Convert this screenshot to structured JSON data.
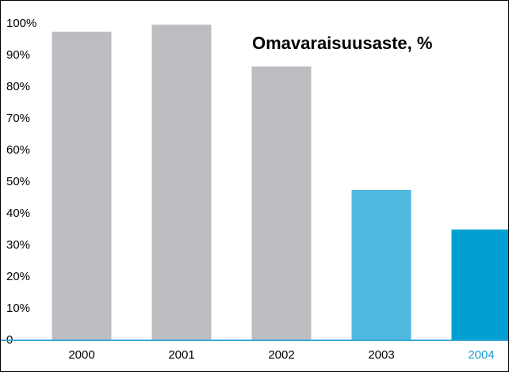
{
  "chart_data": {
    "type": "bar",
    "title": "Omavaraisuusaste, %",
    "categories": [
      "2000",
      "2001",
      "2002",
      "2003",
      "2004"
    ],
    "values": [
      97.5,
      99.7,
      86.5,
      47.5,
      35
    ],
    "colors": [
      "#bcbdc0",
      "#bcbdc0",
      "#bcbdc0",
      "#4fb8e0",
      "#00a0d2"
    ],
    "category_label_colors": [
      "#000000",
      "#000000",
      "#000000",
      "#000000",
      "#1a9fd0"
    ],
    "baseline_color": "#3aa7d6",
    "ylim": [
      0,
      100
    ],
    "yticks": [
      0,
      {
        "value": 10,
        "label": "10%"
      },
      {
        "value": 20,
        "label": "20%"
      },
      {
        "value": 30,
        "label": "30%"
      },
      {
        "value": 40,
        "label": "40%"
      },
      {
        "value": 50,
        "label": "50%"
      },
      {
        "value": 60,
        "label": "60%"
      },
      {
        "value": 70,
        "label": "70%"
      },
      {
        "value": 80,
        "label": "80%"
      },
      {
        "value": 90,
        "label": "90%"
      },
      {
        "value": 100,
        "label": "100%"
      }
    ],
    "grid": false
  }
}
